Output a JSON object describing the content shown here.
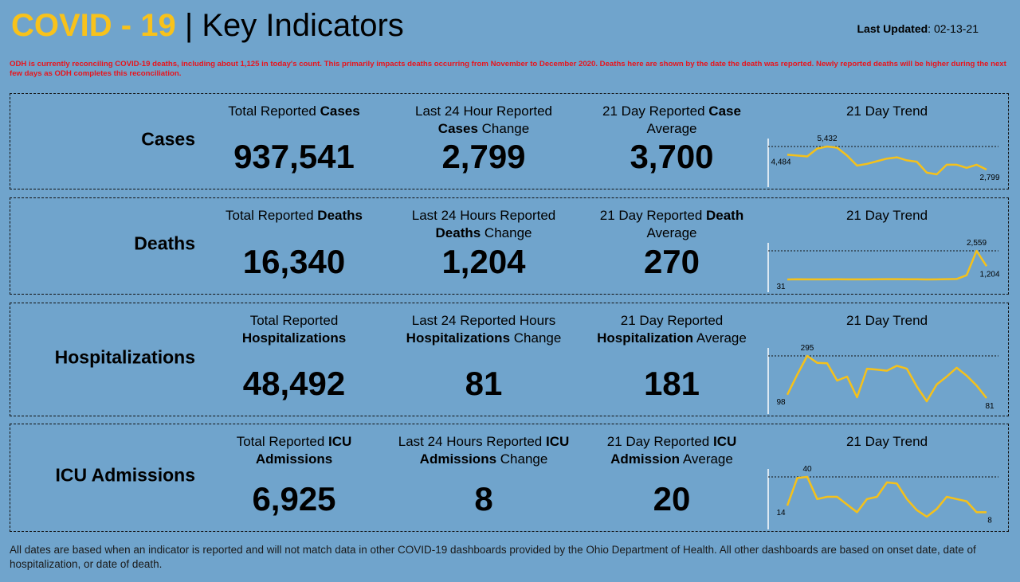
{
  "header": {
    "title_highlight": "COVID - 19",
    "title_rest": "| Key Indicators",
    "last_updated_label": "Last Updated",
    "last_updated": ": 02-13-21"
  },
  "notice": "ODH is currently reconciling COVID-19 deaths, including about 1,125 in today's count. This primarily impacts deaths occurring from November to December 2020. Deaths here are shown by the date the death was reported. Newly reported deaths will be higher during the next few days as ODH completes this reconciliation.",
  "panels": [
    {
      "label": "Cases",
      "metrics": [
        {
          "heading": [
            {
              "text": "Total Reported "
            },
            {
              "text": "Cases",
              "bold": true
            }
          ],
          "value": "937,541"
        },
        {
          "heading": [
            {
              "text": "Last 24 Hour Reported "
            },
            {
              "text": "Cases",
              "bold": true
            },
            {
              "text": " Change"
            }
          ],
          "value": "2,799"
        },
        {
          "heading": [
            {
              "text": "21 Day Reported "
            },
            {
              "text": "Case",
              "bold": true
            },
            {
              "text": " Average"
            }
          ],
          "value": "3,700"
        }
      ],
      "trend": {
        "title": "21 Day Trend",
        "values": [
          4484,
          4400,
          4300,
          5200,
          5432,
          5300,
          4400,
          3250,
          3450,
          3750,
          4050,
          4200,
          3850,
          3700,
          2450,
          2250,
          3350,
          3350,
          3000,
          3350,
          2799
        ],
        "value_labels": [
          "4,484",
          null,
          null,
          null,
          "5,432",
          null,
          null,
          null,
          null,
          null,
          null,
          null,
          null,
          null,
          null,
          null,
          null,
          null,
          null,
          null,
          "2,799"
        ]
      }
    },
    {
      "label": "Deaths",
      "metrics": [
        {
          "heading": [
            {
              "text": "Total Reported "
            },
            {
              "text": "Deaths",
              "bold": true
            }
          ],
          "value": "16,340"
        },
        {
          "heading": [
            {
              "text": "Last 24 Hours Reported "
            },
            {
              "text": "Deaths",
              "bold": true
            },
            {
              "text": " Change"
            }
          ],
          "value": "1,204"
        },
        {
          "heading": [
            {
              "text": "21 Day Reported "
            },
            {
              "text": "Death",
              "bold": true
            },
            {
              "text": " Average"
            }
          ],
          "value": "270"
        }
      ],
      "trend": {
        "title": "21 Day Trend",
        "values": [
          31,
          45,
          40,
          38,
          35,
          42,
          40,
          37,
          36,
          50,
          60,
          55,
          48,
          45,
          30,
          40,
          60,
          70,
          400,
          2559,
          1204
        ],
        "value_labels": [
          "31",
          null,
          null,
          null,
          null,
          null,
          null,
          null,
          null,
          null,
          null,
          null,
          null,
          null,
          null,
          null,
          null,
          null,
          null,
          "2,559",
          "1,204"
        ]
      }
    },
    {
      "label": "Hospitalizations",
      "metrics": [
        {
          "heading": [
            {
              "text": "Total Reported "
            },
            {
              "text": "Hospitalizations",
              "bold": true
            }
          ],
          "value": "48,492"
        },
        {
          "heading": [
            {
              "text": "Last 24 Reported Hours "
            },
            {
              "text": "Hospitalizations",
              "bold": true
            },
            {
              "text": " Change"
            }
          ],
          "value": "81"
        },
        {
          "heading": [
            {
              "text": "21 Day Reported "
            },
            {
              "text": "Hospitalization",
              "bold": true
            },
            {
              "text": " Average"
            }
          ],
          "value": "181"
        }
      ],
      "trend": {
        "title": "21 Day Trend",
        "values": [
          98,
          200,
          295,
          260,
          258,
          170,
          190,
          85,
          230,
          225,
          220,
          245,
          230,
          140,
          65,
          150,
          190,
          235,
          195,
          145,
          81
        ]
      }
    },
    {
      "label": "ICU Admissions",
      "metrics": [
        {
          "heading": [
            {
              "text": "Total Reported "
            },
            {
              "text": "ICU",
              "bold": true
            },
            {
              "text": " Admissions",
              "bold": true
            }
          ],
          "value": "6,925"
        },
        {
          "heading": [
            {
              "text": "Last 24 Hours Reported "
            },
            {
              "text": "ICU Admissions",
              "bold": true
            },
            {
              "text": " Change"
            }
          ],
          "value": "8"
        },
        {
          "heading": [
            {
              "text": "21 Day Reported "
            },
            {
              "text": "ICU Admission",
              "bold": true
            },
            {
              "text": " Average"
            }
          ],
          "value": "20"
        }
      ],
      "trend": {
        "title": "21 Day Trend",
        "values": [
          14,
          39,
          40,
          20,
          22,
          22,
          15,
          8,
          20,
          22,
          35,
          34,
          20,
          10,
          4,
          11,
          22,
          20,
          18,
          8,
          8
        ]
      }
    }
  ],
  "footer": "All dates are based when an indicator is reported and will not match data in other COVID-19 dashboards provided by the Ohio Department of Health. All other dashboards are based on onset date, date of hospitalization, or date of death."
}
